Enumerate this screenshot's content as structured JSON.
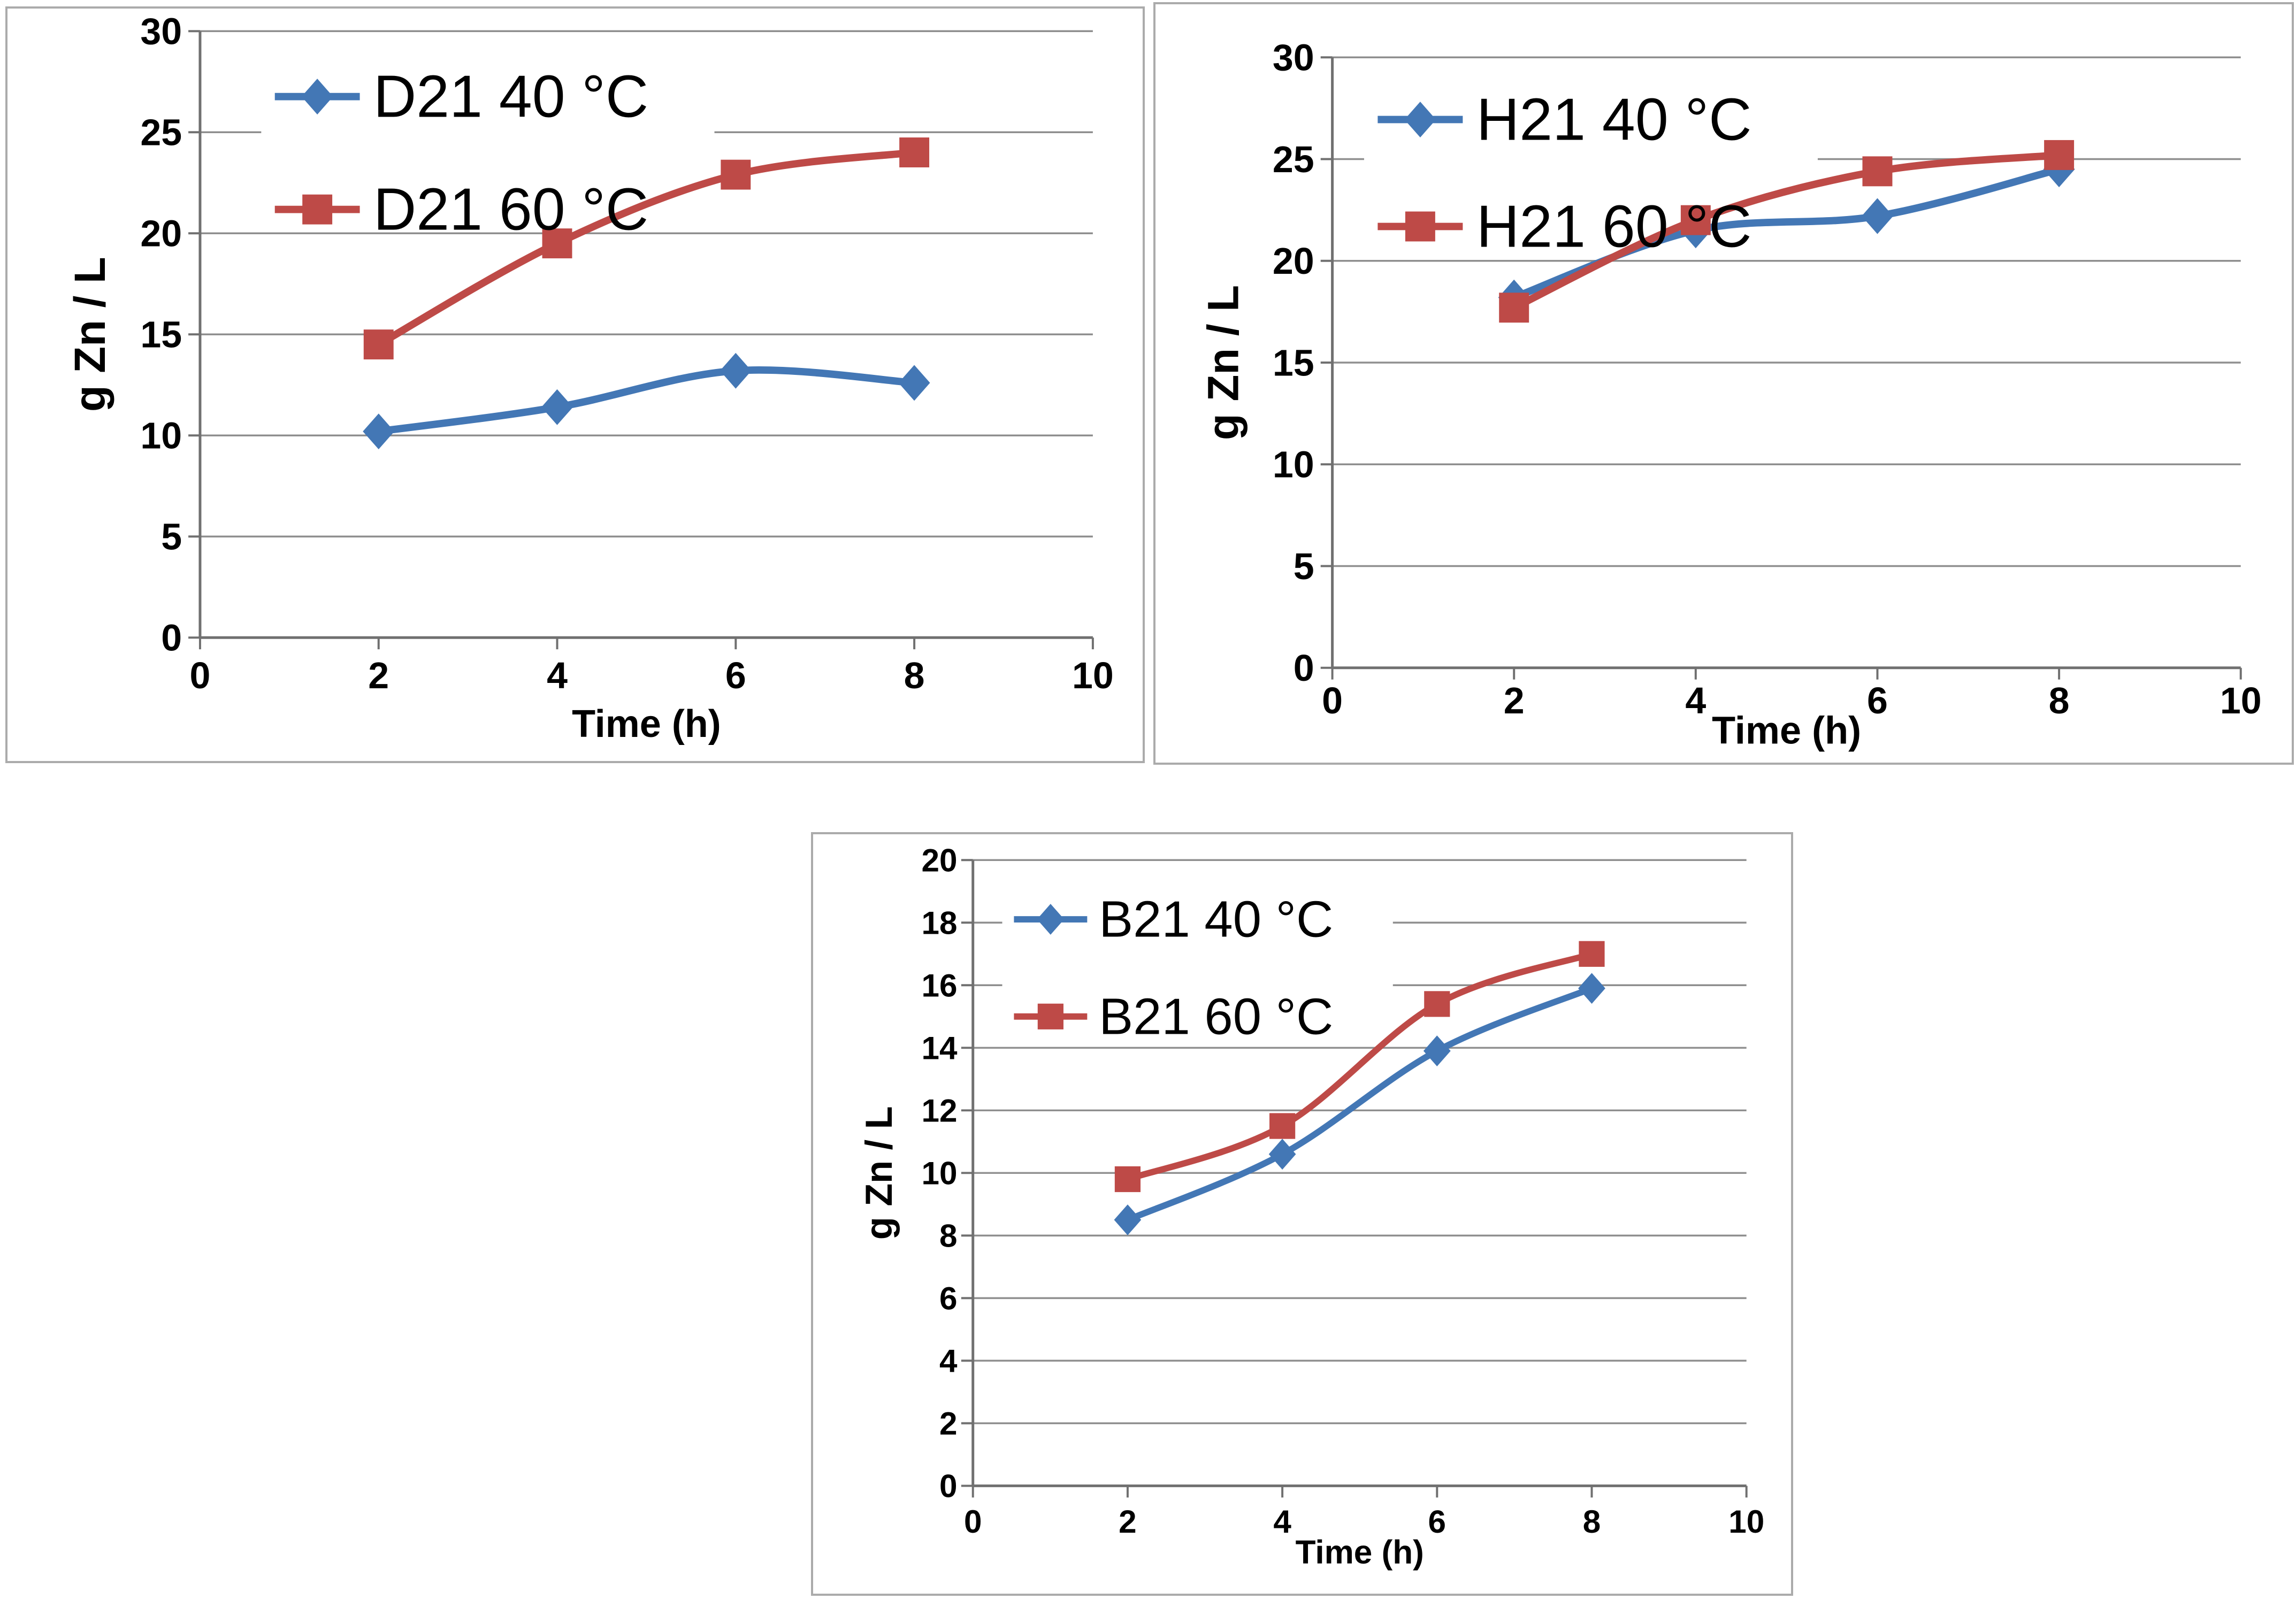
{
  "colors": {
    "series_blue": "#4377B5",
    "series_red": "#BE4A47",
    "gridline": "#8f8f8f",
    "axis": "#707070",
    "text": "#000000",
    "panel_border": "#ababab",
    "legend_background": "#ffffff"
  },
  "chart_data": [
    {
      "id": "d21",
      "type": "line",
      "title": "",
      "xlabel": "Time (h)",
      "ylabel": "g Zn / L",
      "x": [
        2,
        4,
        6,
        8
      ],
      "xlim": [
        0,
        10
      ],
      "ylim": [
        0,
        30
      ],
      "x_ticks": [
        0,
        2,
        4,
        6,
        8,
        10
      ],
      "y_ticks": [
        0,
        5,
        10,
        15,
        20,
        25,
        30
      ],
      "grid": "horizontal",
      "smooth": true,
      "legend_position": "inside-top-left",
      "series": [
        {
          "name": "D21 40 °C",
          "color": "#4377B5",
          "marker": "diamond",
          "values": [
            10.2,
            11.4,
            13.2,
            12.6
          ]
        },
        {
          "name": "D21 60 °C",
          "color": "#BE4A47",
          "marker": "square",
          "values": [
            14.5,
            19.5,
            22.9,
            24.0
          ]
        }
      ]
    },
    {
      "id": "h21",
      "type": "line",
      "title": "",
      "xlabel": "Time (h)",
      "ylabel": "g Zn / L",
      "x": [
        2,
        4,
        6,
        8
      ],
      "xlim": [
        0,
        10
      ],
      "ylim": [
        0,
        30
      ],
      "x_ticks": [
        0,
        2,
        4,
        6,
        8,
        10
      ],
      "y_ticks": [
        0,
        5,
        10,
        15,
        20,
        25,
        30
      ],
      "grid": "horizontal",
      "smooth": true,
      "legend_position": "inside-top-left",
      "series": [
        {
          "name": "H21 40 °C",
          "color": "#4377B5",
          "marker": "diamond",
          "values": [
            18.2,
            21.5,
            22.2,
            24.5
          ]
        },
        {
          "name": "H21 60 °C",
          "color": "#BE4A47",
          "marker": "square",
          "values": [
            17.7,
            22.0,
            24.4,
            25.2
          ]
        }
      ]
    },
    {
      "id": "b21",
      "type": "line",
      "title": "",
      "xlabel": "Time (h)",
      "ylabel": "g Zn / L",
      "x": [
        2,
        4,
        6,
        8
      ],
      "xlim": [
        0,
        10
      ],
      "ylim": [
        0,
        20
      ],
      "x_ticks": [
        0,
        2,
        4,
        6,
        8,
        10
      ],
      "y_ticks": [
        0,
        2,
        4,
        6,
        8,
        10,
        12,
        14,
        16,
        18,
        20
      ],
      "grid": "horizontal",
      "smooth": true,
      "legend_position": "inside-top-left",
      "series": [
        {
          "name": "B21 40 °C",
          "color": "#4377B5",
          "marker": "diamond",
          "values": [
            8.5,
            10.6,
            13.9,
            15.9
          ]
        },
        {
          "name": "B21 60 °C",
          "color": "#BE4A47",
          "marker": "square",
          "values": [
            9.8,
            11.5,
            15.4,
            17.0
          ]
        }
      ]
    }
  ]
}
